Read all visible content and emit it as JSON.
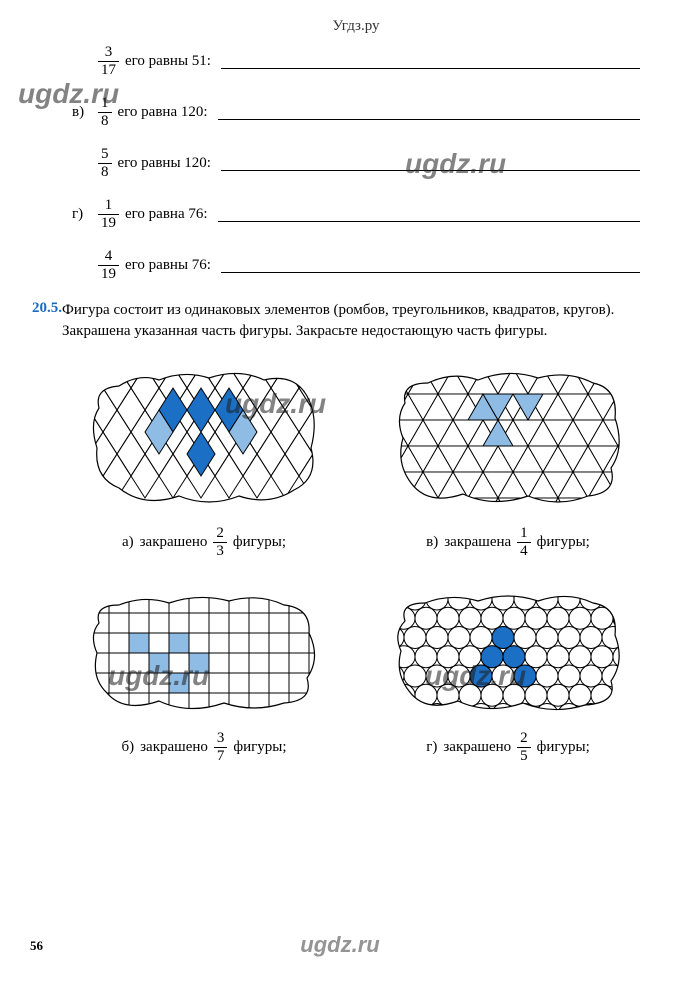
{
  "header": {
    "site": "Угдз.ру"
  },
  "watermarks": {
    "text": "ugdz.ru"
  },
  "exercises": {
    "e1": {
      "letter": "",
      "frac_n": "3",
      "frac_d": "17",
      "txt": "его равны 51:"
    },
    "e2": {
      "letter": "в)",
      "frac_n": "1",
      "frac_d": "8",
      "txt": "его равна 120:"
    },
    "e3": {
      "letter": "",
      "frac_n": "5",
      "frac_d": "8",
      "txt": "его равны 120:"
    },
    "e4": {
      "letter": "г)",
      "frac_n": "1",
      "frac_d": "19",
      "txt": "его равна 76:"
    },
    "e5": {
      "letter": "",
      "frac_n": "4",
      "frac_d": "19",
      "txt": "его равны 76:"
    }
  },
  "problem": {
    "number": "20.5.",
    "text": "Фигура состоит из одинаковых элементов (ромбов, треугольников, квадратов, кругов). Закрашена указанная часть фигуры. Закрасьте недостающую часть фигуры."
  },
  "captions": {
    "a": {
      "letter": "а)",
      "word1": "закрашено",
      "n": "2",
      "d": "3",
      "word2": "фигуры;"
    },
    "b": {
      "letter": "б)",
      "word1": "закрашено",
      "n": "3",
      "d": "7",
      "word2": "фигуры;"
    },
    "v": {
      "letter": "в)",
      "word1": "закрашена",
      "n": "1",
      "d": "4",
      "word2": "фигуры;"
    },
    "g": {
      "letter": "г)",
      "word1": "закрашено",
      "n": "2",
      "d": "5",
      "word2": "фигуры;"
    }
  },
  "colors": {
    "blue_dark": "#1b6fc4",
    "blue_light": "#8ebce4",
    "border": "#000000",
    "cloud": "#ffffff"
  },
  "page": "56"
}
